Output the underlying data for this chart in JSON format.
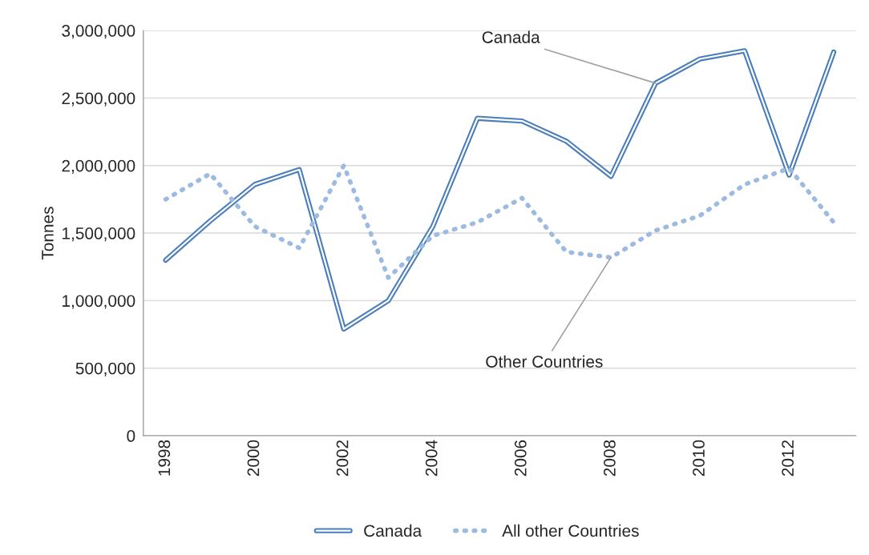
{
  "chart_data": {
    "type": "line",
    "ylabel": "Tonnes",
    "x": [
      1998,
      1999,
      2000,
      2001,
      2002,
      2003,
      2004,
      2005,
      2006,
      2007,
      2008,
      2009,
      2010,
      2011,
      2012,
      2013
    ],
    "series": [
      {
        "name": "Canada",
        "color": "#4a7ebb",
        "line_style": "solid",
        "values": [
          1300000,
          1590000,
          1860000,
          1970000,
          790000,
          1000000,
          1550000,
          2350000,
          2330000,
          2180000,
          1920000,
          2610000,
          2790000,
          2850000,
          1930000,
          2840000
        ]
      },
      {
        "name": "All other Countries",
        "color": "#9dbbe0",
        "line_style": "dotted",
        "values": [
          1750000,
          1940000,
          1550000,
          1390000,
          2000000,
          1170000,
          1480000,
          1580000,
          1760000,
          1360000,
          1320000,
          1520000,
          1630000,
          1860000,
          1980000,
          1580000
        ]
      }
    ],
    "xlim": [
      1997.5,
      2013.5
    ],
    "xticks": [
      1998,
      2000,
      2002,
      2004,
      2006,
      2008,
      2010,
      2012
    ],
    "ylim": [
      0,
      3000000
    ],
    "yticks": [
      {
        "value": 0,
        "label": "0"
      },
      {
        "value": 500000,
        "label": "500,000"
      },
      {
        "value": 1000000,
        "label": "1,000,000"
      },
      {
        "value": 1500000,
        "label": "1,500,000"
      },
      {
        "value": 2000000,
        "label": "2,000,000"
      },
      {
        "value": 2500000,
        "label": "2,500,000"
      },
      {
        "value": 3000000,
        "label": "3,000,000"
      }
    ],
    "grid": "y",
    "legend": "bottom",
    "marker": "none",
    "annotations": [
      {
        "text": "Canada",
        "x": 2009,
        "y": 2610000
      },
      {
        "text": "Other Countries",
        "x": 2008,
        "y": 1320000
      }
    ]
  }
}
